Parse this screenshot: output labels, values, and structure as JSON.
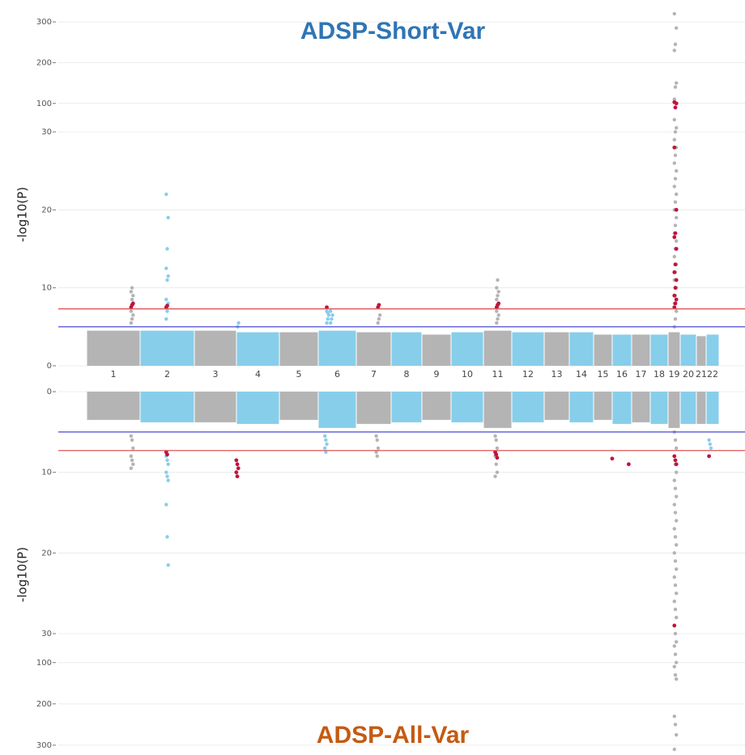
{
  "chart_data": {
    "type": "miami",
    "categories": [
      "1",
      "2",
      "3",
      "4",
      "5",
      "6",
      "7",
      "8",
      "9",
      "10",
      "11",
      "12",
      "13",
      "14",
      "15",
      "16",
      "17",
      "18",
      "19",
      "20",
      "21",
      "22"
    ],
    "colors": [
      "#b4b4b4",
      "#87ceeb"
    ],
    "highlight_color": "#c0143c",
    "grid": true,
    "panels": [
      {
        "title": "ADSP-Short-Var",
        "title_color": "#2e75b6",
        "ylabel": "-log10(P)",
        "ylim": [
          0,
          320
        ],
        "y_break": 30,
        "yticks": [
          0,
          10,
          20,
          30,
          100,
          200,
          300
        ],
        "significance_line": {
          "value": 7.3,
          "color": "#e05555"
        },
        "suggestive_line": {
          "value": 5,
          "color": "#5a5ad8"
        },
        "block_tops": [
          4.5,
          4.5,
          4.5,
          4.3,
          4.3,
          4.5,
          4.3,
          4.3,
          4,
          4.3,
          4.5,
          4.3,
          4.3,
          4.3,
          4,
          4,
          4,
          4,
          4.3,
          4,
          3.8,
          4
        ],
        "peaks": [
          {
            "x": 1.85,
            "values": [
              5.5,
              6,
              6.5,
              7,
              8.5,
              9,
              9.5,
              10
            ],
            "highlight": [
              7.5,
              7.8,
              8
            ]
          },
          {
            "x": 2.5,
            "values": [
              6,
              7,
              8,
              8.5,
              11,
              11.5,
              12.5,
              15,
              19,
              22
            ],
            "highlight": [
              7.5,
              7.7
            ]
          },
          {
            "x": 4.05,
            "values": [
              5,
              5.5
            ],
            "highlight": []
          },
          {
            "x": 6.25,
            "values": [
              5.5,
              6,
              6.5,
              7,
              6.8
            ],
            "highlight": [
              7.5
            ]
          },
          {
            "x": 6.35,
            "values": [
              5.5,
              6,
              6.5,
              7
            ],
            "highlight": []
          },
          {
            "x": 7.65,
            "values": [
              5.5,
              6,
              6.5
            ],
            "highlight": [
              7.5,
              7.8
            ]
          },
          {
            "x": 11.5,
            "values": [
              5.5,
              6,
              6.5,
              7,
              7.5,
              8,
              8.5,
              9,
              9.5,
              10,
              11
            ],
            "highlight": [
              7.5,
              7.8,
              8
            ]
          },
          {
            "x": 19.6,
            "values": [
              5,
              6,
              7,
              8,
              9,
              10,
              11,
              12,
              13,
              14,
              15,
              16,
              17,
              18,
              19,
              20,
              21,
              22,
              23,
              24,
              25,
              26,
              27,
              28,
              29,
              30,
              40,
              60,
              90,
              100,
              110,
              140,
              150,
              230,
              245,
              285,
              320
            ],
            "highlight": [
              7.5,
              8,
              8.5,
              9,
              10,
              11,
              12,
              13,
              15,
              16.5,
              17,
              20,
              28,
              90,
              100,
              103
            ]
          }
        ]
      },
      {
        "title": "ADSP-All-Var",
        "title_color": "#c55a11",
        "ylabel": "-log10(P)",
        "ylim": [
          0,
          310
        ],
        "y_break": 30,
        "yticks": [
          0,
          10,
          20,
          30,
          100,
          200,
          300
        ],
        "significance_line": {
          "value": 7.3,
          "color": "#e05555"
        },
        "suggestive_line": {
          "value": 5,
          "color": "#5a5ad8"
        },
        "block_tops": [
          3.5,
          3.8,
          3.8,
          4,
          3.5,
          4.5,
          4,
          3.8,
          3.5,
          3.8,
          4.5,
          3.8,
          3.5,
          3.8,
          3.5,
          4,
          3.8,
          4,
          4.5,
          4,
          4,
          4
        ],
        "peaks": [
          {
            "x": 1.85,
            "values": [
              5.5,
              6,
              7,
              8,
              8.5,
              9,
              9.5
            ],
            "highlight": []
          },
          {
            "x": 2.5,
            "values": [
              8,
              8.5,
              9,
              10,
              10.5,
              11,
              14,
              18,
              21.5
            ],
            "highlight": [
              7.5,
              7.8
            ]
          },
          {
            "x": 4.02,
            "values": [],
            "highlight": [
              8.5,
              9,
              9.5,
              10,
              10.5
            ]
          },
          {
            "x": 6.2,
            "values": [
              5.5,
              6,
              6.5,
              7,
              7.5
            ],
            "highlight": []
          },
          {
            "x": 7.6,
            "values": [
              5.5,
              6,
              7,
              7.5,
              8
            ],
            "highlight": []
          },
          {
            "x": 11.45,
            "values": [
              5.5,
              6,
              7,
              8,
              9,
              10,
              10.5
            ],
            "highlight": [
              7.5,
              7.8,
              8.2
            ]
          },
          {
            "x": 16.05,
            "values": [],
            "highlight": [
              8.3
            ]
          },
          {
            "x": 16.9,
            "values": [],
            "highlight": [
              9
            ]
          },
          {
            "x": 19.6,
            "values": [
              5,
              6,
              7,
              8,
              9,
              10,
              11,
              12,
              13,
              14,
              15,
              16,
              17,
              18,
              19,
              20,
              21,
              22,
              23,
              24,
              25,
              26,
              27,
              28,
              29,
              30,
              50,
              60,
              80,
              100,
              110,
              130,
              140,
              230,
              250,
              275,
              310
            ],
            "highlight": [
              8,
              8.5,
              9,
              29
            ]
          },
          {
            "x": 22.3,
            "values": [
              6,
              6.5,
              7
            ],
            "highlight": [
              8
            ]
          }
        ]
      }
    ]
  }
}
